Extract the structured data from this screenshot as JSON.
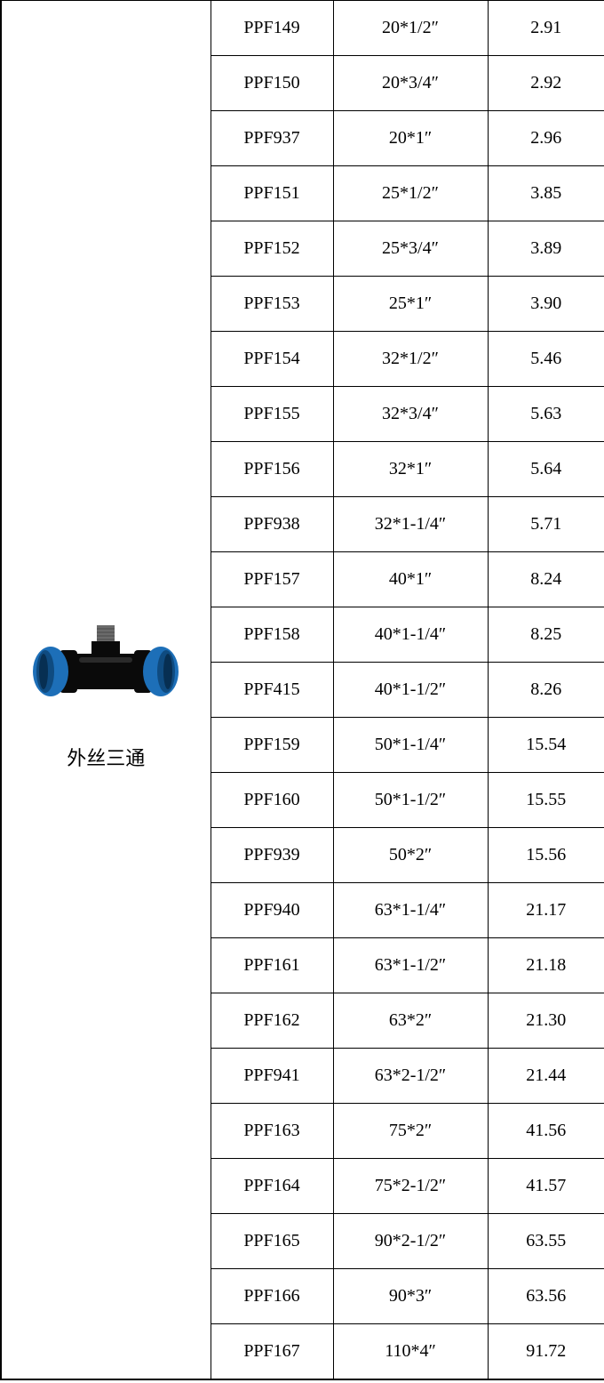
{
  "product": {
    "label": "外丝三通",
    "body_color": "#0a0a0a",
    "cap_color": "#1d6fb8",
    "cap_edge_color": "#0f4b80",
    "thread_color": "#6b6b6b"
  },
  "columns": [
    "code",
    "spec",
    "price"
  ],
  "rows": [
    {
      "code": "PPF149",
      "spec": "20*1/2″",
      "price": "2.91"
    },
    {
      "code": "PPF150",
      "spec": "20*3/4″",
      "price": "2.92"
    },
    {
      "code": "PPF937",
      "spec": "20*1″",
      "price": "2.96"
    },
    {
      "code": "PPF151",
      "spec": "25*1/2″",
      "price": "3.85"
    },
    {
      "code": "PPF152",
      "spec": "25*3/4″",
      "price": "3.89"
    },
    {
      "code": "PPF153",
      "spec": "25*1″",
      "price": "3.90"
    },
    {
      "code": "PPF154",
      "spec": "32*1/2″",
      "price": "5.46"
    },
    {
      "code": "PPF155",
      "spec": "32*3/4″",
      "price": "5.63"
    },
    {
      "code": "PPF156",
      "spec": "32*1″",
      "price": "5.64"
    },
    {
      "code": "PPF938",
      "spec": "32*1-1/4″",
      "price": "5.71"
    },
    {
      "code": "PPF157",
      "spec": "40*1″",
      "price": "8.24"
    },
    {
      "code": "PPF158",
      "spec": "40*1-1/4″",
      "price": "8.25"
    },
    {
      "code": "PPF415",
      "spec": "40*1-1/2″",
      "price": "8.26"
    },
    {
      "code": "PPF159",
      "spec": "50*1-1/4″",
      "price": "15.54"
    },
    {
      "code": "PPF160",
      "spec": "50*1-1/2″",
      "price": "15.55"
    },
    {
      "code": "PPF939",
      "spec": "50*2″",
      "price": "15.56"
    },
    {
      "code": "PPF940",
      "spec": "63*1-1/4″",
      "price": "21.17"
    },
    {
      "code": "PPF161",
      "spec": "63*1-1/2″",
      "price": "21.18"
    },
    {
      "code": "PPF162",
      "spec": "63*2″",
      "price": "21.30"
    },
    {
      "code": "PPF941",
      "spec": "63*2-1/2″",
      "price": "21.44"
    },
    {
      "code": "PPF163",
      "spec": "75*2″",
      "price": "41.56"
    },
    {
      "code": "PPF164",
      "spec": "75*2-1/2″",
      "price": "41.57"
    },
    {
      "code": "PPF165",
      "spec": "90*2-1/2″",
      "price": "63.55"
    },
    {
      "code": "PPF166",
      "spec": "90*3″",
      "price": "63.56"
    },
    {
      "code": "PPF167",
      "spec": "110*4″",
      "price": "91.72"
    }
  ]
}
